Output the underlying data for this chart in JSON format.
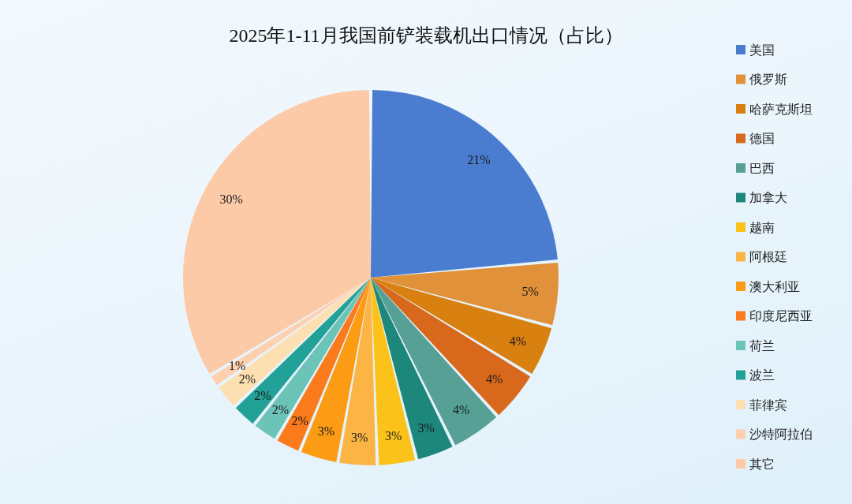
{
  "chart_data": {
    "type": "pie",
    "title": "2025年1-11月我国前铲装载机出口情况（占比）",
    "categories": [
      "美国",
      "俄罗斯",
      "哈萨克斯坦",
      "德国",
      "巴西",
      "加拿大",
      "越南",
      "阿根廷",
      "澳大利亚",
      "印度尼西亚",
      "荷兰",
      "波兰",
      "菲律宾",
      "沙特阿拉伯",
      "其它"
    ],
    "values": [
      21,
      5,
      4,
      4,
      4,
      3,
      3,
      3,
      3,
      2,
      2,
      2,
      2,
      1,
      30
    ],
    "value_labels": [
      "21%",
      "5%",
      "4%",
      "4%",
      "4%",
      "3%",
      "3%",
      "3%",
      "3%",
      "2%",
      "2%",
      "2%",
      "2%",
      "1%",
      "30%"
    ],
    "colors": [
      "#4a7dd0",
      "#e0913a",
      "#d88010",
      "#d8681c",
      "#56a096",
      "#1d877c",
      "#fbc21a",
      "#fcb445",
      "#fb9c14",
      "#fb7a1c",
      "#6cc3b8",
      "#22a198",
      "#fde0b2",
      "#ffd0b0",
      "#fdcaa8"
    ],
    "legend": "right"
  }
}
